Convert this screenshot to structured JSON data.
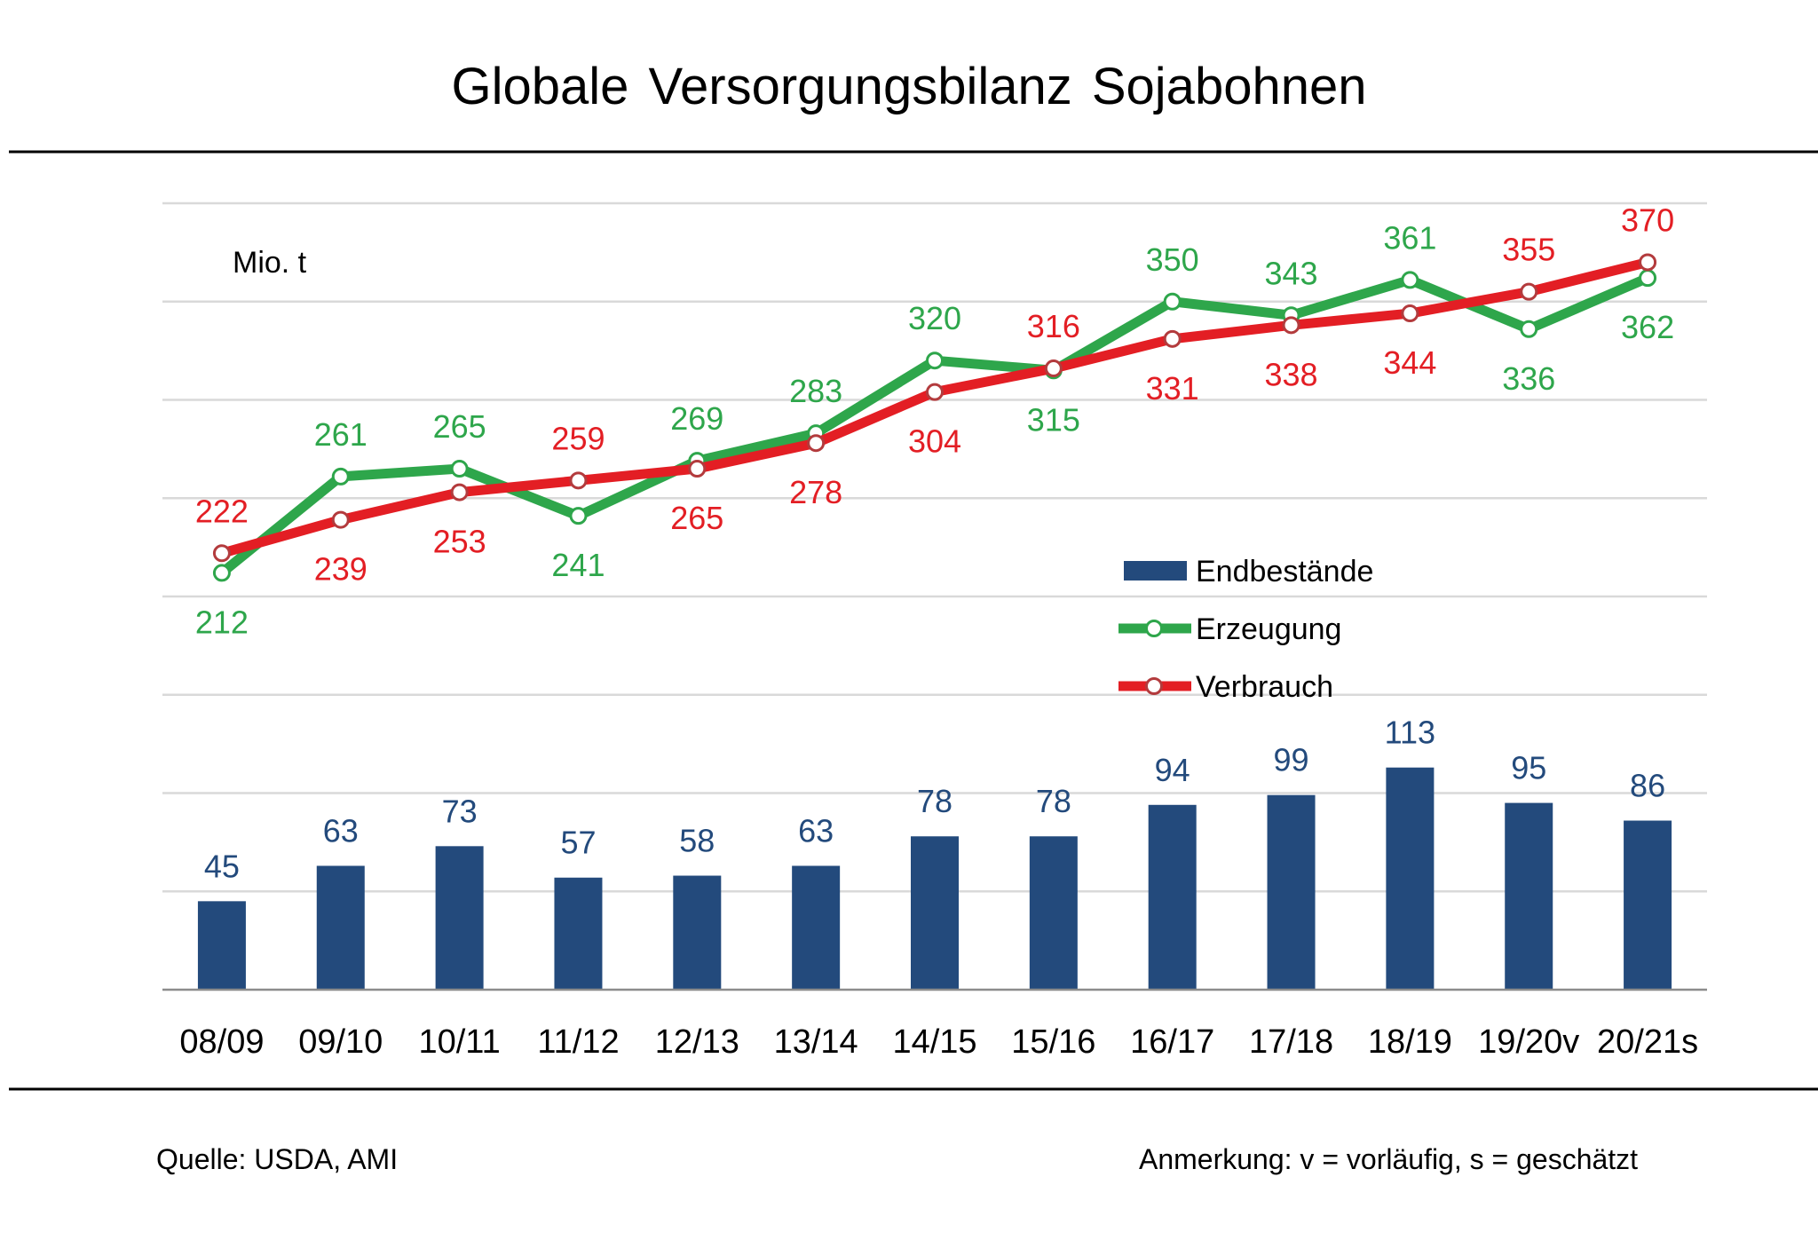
{
  "page": {
    "source": "Quelle: USDA, AMI",
    "note": "Anmerkung: v = vorläufig, s = geschätzt"
  },
  "colors": {
    "grid": "#D9D9D9",
    "axis": "#8C8C8C",
    "text": "#000000",
    "marker_fill": "#FFFFFF"
  },
  "chart_data": {
    "type": "bar",
    "combo": "bars + lines",
    "title": "Globale Versorgungsbilanz Sojabohnen",
    "xlabel": "",
    "ylabel": "Mio. t",
    "ylim": [
      0,
      400
    ],
    "ytick_step": 50,
    "y_tick_labels_visible": false,
    "grid": true,
    "legend": {
      "position": "center-right",
      "entries": [
        "Endbestände",
        "Erzeugung",
        "Verbrauch"
      ]
    },
    "categories": [
      "08/09",
      "09/10",
      "10/11",
      "11/12",
      "12/13",
      "13/14",
      "14/15",
      "15/16",
      "16/17",
      "17/18",
      "18/19",
      "19/20v",
      "20/21s"
    ],
    "series": [
      {
        "name": "Endbestände",
        "type": "bar",
        "color": "#234A7C",
        "values": [
          45,
          63,
          73,
          57,
          58,
          63,
          78,
          78,
          94,
          99,
          113,
          95,
          86
        ]
      },
      {
        "name": "Erzeugung",
        "type": "line",
        "color": "#2EA64B",
        "marker": "circle",
        "marker_edge_color": "#2EA64B",
        "values": [
          212,
          261,
          265,
          241,
          269,
          283,
          320,
          315,
          350,
          343,
          361,
          336,
          362
        ],
        "label_positions": [
          "below",
          "above",
          "above",
          "below",
          "above",
          "above",
          "above",
          "below",
          "above",
          "above",
          "above",
          "below",
          "below"
        ]
      },
      {
        "name": "Verbrauch",
        "type": "line",
        "color": "#E31E24",
        "marker": "circle",
        "marker_edge_color": "#B33B3D",
        "values": [
          222,
          239,
          253,
          259,
          265,
          278,
          304,
          316,
          331,
          338,
          344,
          355,
          370
        ],
        "label_positions": [
          "above",
          "below",
          "below",
          "above",
          "below",
          "below",
          "below",
          "above",
          "below",
          "below",
          "below",
          "above",
          "above"
        ]
      }
    ]
  }
}
